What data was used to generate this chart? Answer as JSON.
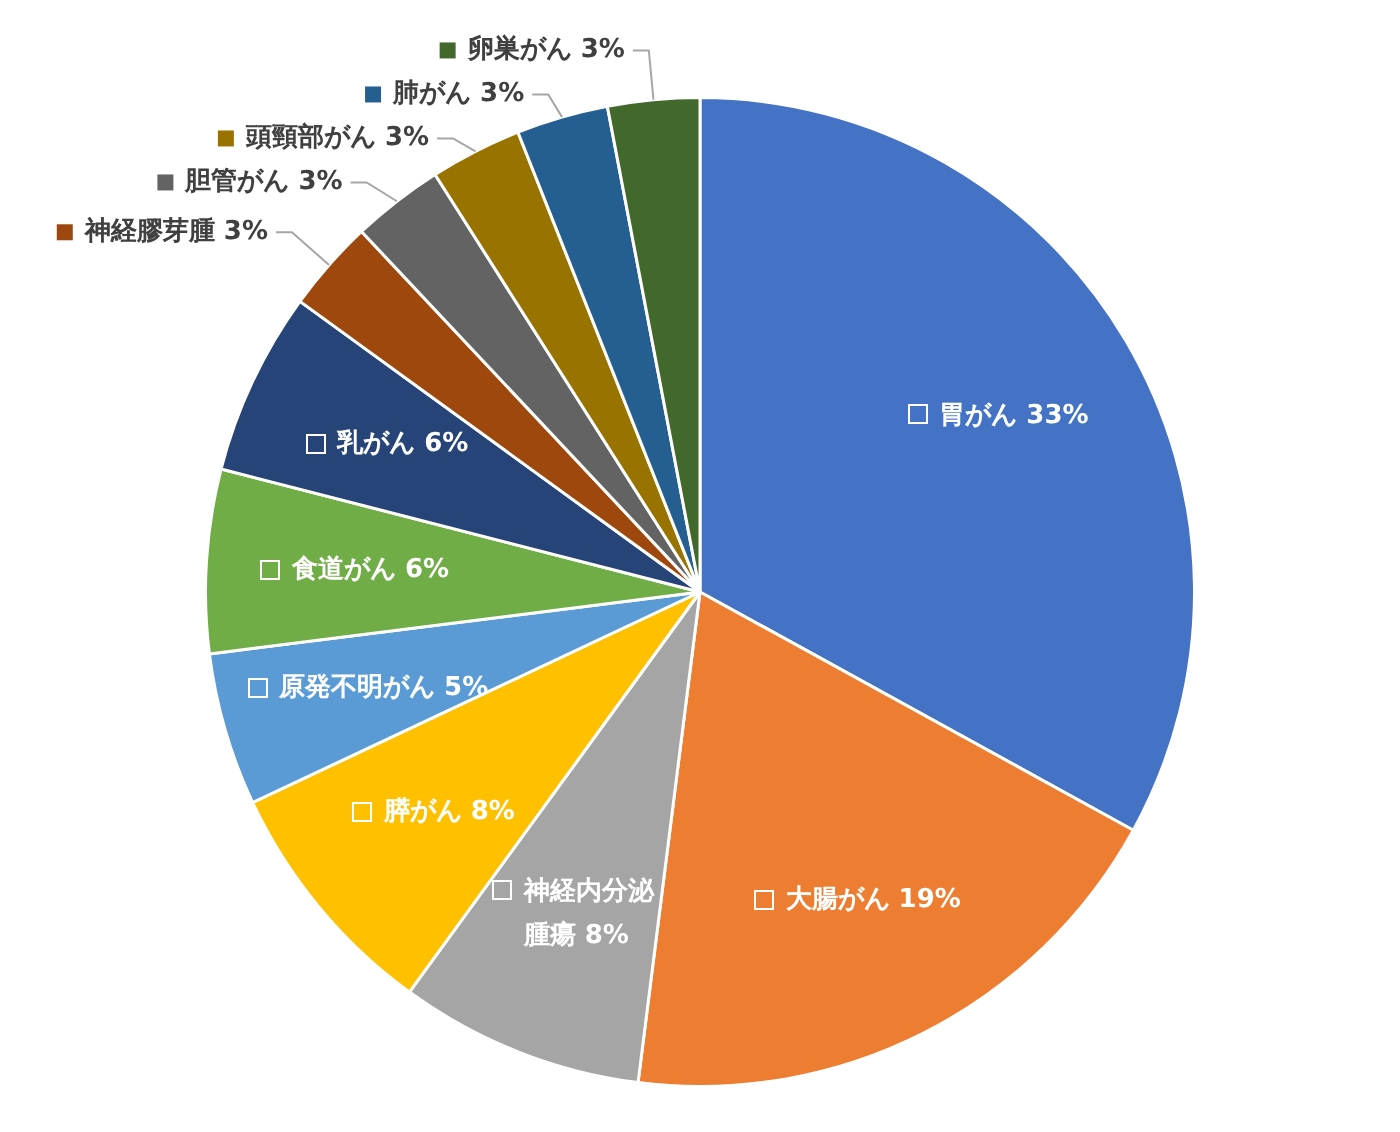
{
  "chart_data": {
    "type": "pie",
    "categories": [
      "胃がん",
      "大腸がん",
      "神経内分泌腫瘍",
      "膵がん",
      "原発不明がん",
      "食道がん",
      "乳がん",
      "神経膠芽腫",
      "胆管がん",
      "頭頸部がん",
      "肺がん",
      "卵巣がん"
    ],
    "values": [
      33,
      19,
      8,
      8,
      5,
      6,
      6,
      3,
      3,
      3,
      3,
      3
    ],
    "colors": [
      "#4472c4",
      "#ed7d31",
      "#a5a5a5",
      "#ffc000",
      "#5b9bd5",
      "#70ad47",
      "#264478",
      "#9e480e",
      "#636363",
      "#997300",
      "#255e91",
      "#43682b"
    ],
    "value_labels": [
      "33%",
      "19%",
      "8%",
      "8%",
      "5%",
      "6%",
      "6%",
      "3%",
      "3%",
      "3%",
      "3%",
      "3%"
    ],
    "legend": "top left"
  }
}
